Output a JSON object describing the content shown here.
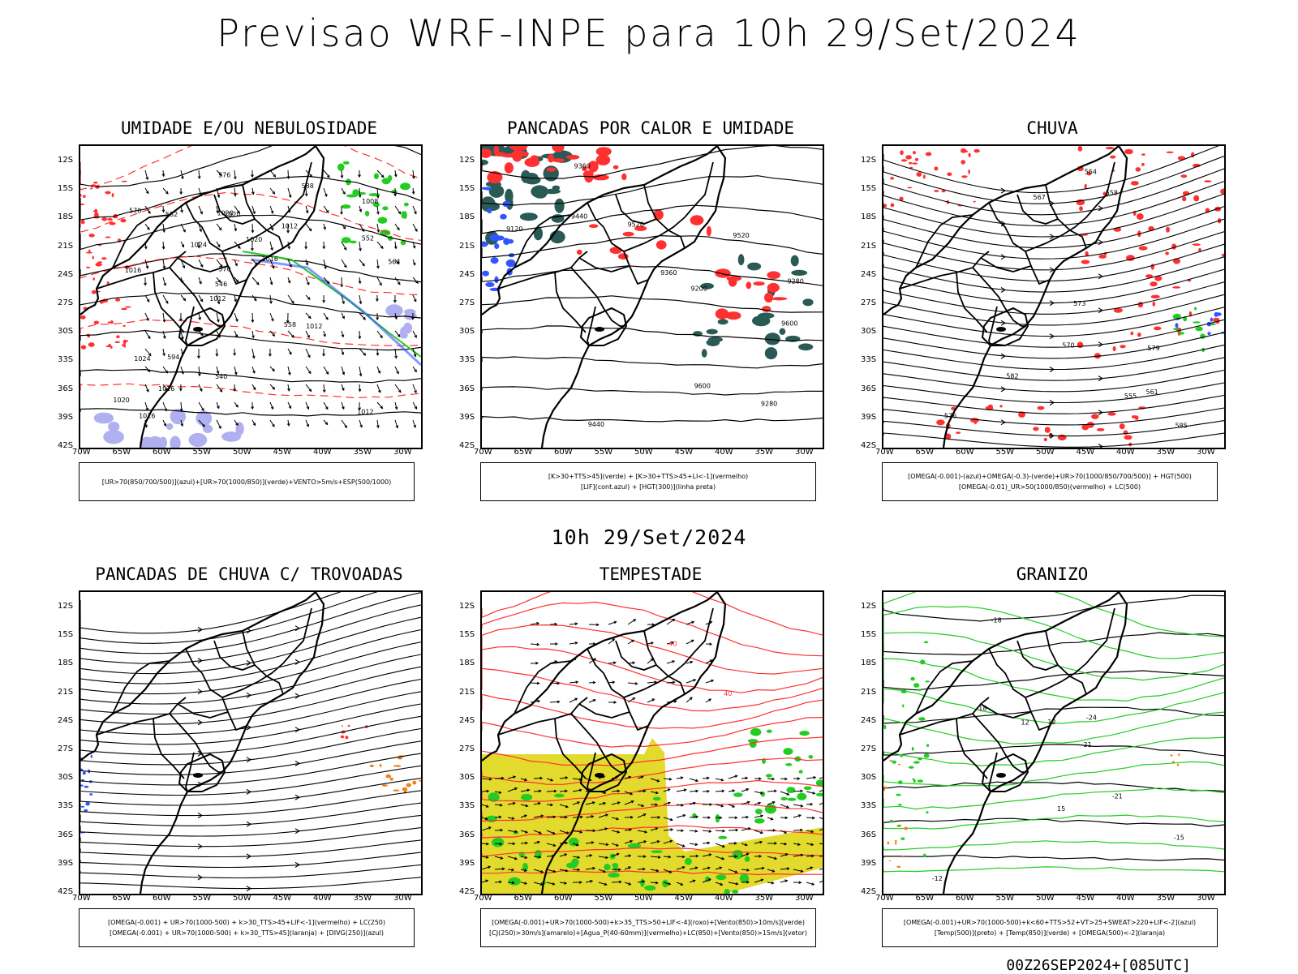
{
  "main_title": "Previsao WRF-INPE  para 10h 29/Set/2024",
  "mid_title": "10h 29/Set/2024",
  "footer": "00Z26SEP2024+[085UTC]",
  "lat_ticks": [
    "12S",
    "15S",
    "18S",
    "21S",
    "24S",
    "27S",
    "30S",
    "33S",
    "36S",
    "39S",
    "42S"
  ],
  "lon_ticks": [
    "70W",
    "65W",
    "60W",
    "55W",
    "50W",
    "45W",
    "40W",
    "35W",
    "30W"
  ],
  "colors": {
    "red": "#ff3030",
    "green": "#22cc22",
    "blue": "#3355ff",
    "darkteal": "#2a5a55",
    "yellow": "#e3da2e",
    "orange": "#f08020",
    "lavender": "#b0b0f0"
  },
  "panels": [
    {
      "title": "UMIDADE E/OU NEBULOSIDADE",
      "legend": [
        "[UR>70(850/700/500)](azul)+[UR>70(1000/850)](verde)+VENTO>5m/s+ESP(500/1000)"
      ],
      "labels": [
        "1012",
        "1016",
        "1008",
        "1012",
        "1012",
        "1016",
        "1020",
        "1020",
        "1024",
        "1024",
        "1020",
        "1016",
        "1020",
        "1016",
        "1012",
        "570",
        "576",
        "564",
        "558",
        "552",
        "546",
        "540",
        "570",
        "582",
        "588",
        "594"
      ]
    },
    {
      "title": "PANCADAS POR CALOR E UMIDADE",
      "legend": [
        "[K>30+TTS>45](verde) + [K>30+TTS>45+LI<-1](vermelho)",
        "[LIF](cont.azul) + [HGT(300)](linha preta)"
      ],
      "labels": [
        "9600",
        "9600",
        "9520",
        "9520",
        "9440",
        "9440",
        "9360",
        "9280",
        "9280",
        "9200",
        "9120",
        "9360"
      ]
    },
    {
      "title": "CHUVA",
      "legend": [
        "[OMEGA(-0.001)-(azul)+OMEGA(-0.3)-(verde)+UR>70(1000/850/700/500)] + HGT(500)",
        "[OMEGA(-0.01)_UR>50(1000/850)(vermelho) + LC(500)"
      ],
      "labels": [
        "576",
        "579",
        "573",
        "570",
        "567",
        "564",
        "561",
        "558",
        "555",
        "582",
        "585"
      ]
    },
    {
      "title": "PANCADAS DE CHUVA C/ TROVOADAS",
      "legend": [
        "[OMEGA(-0.001) + UR>70(1000-500) + k>30_TTS>45+LIF<-1](vermelho) + LC(250)",
        "[OMEGA(-0.001) + UR>70(1000-500) + k>30_TTS>45](laranja) + [DIVG(250)](azul)"
      ],
      "labels": []
    },
    {
      "title": "TEMPESTADE",
      "legend": [
        "[OMEGA(-0.001)+UR>70(1000-500)+k>35_TTS>50+LIF<-4](roxo)+[Vento(850)>10m/s](verde)",
        "[CJ(250)>30m/s](amarelo)+[Agua_P(40-60mm)](vermelho)+LC(850)+[Vento(850)>15m/s](vetor)"
      ],
      "labels": [
        "40",
        "40"
      ]
    },
    {
      "title": "GRANIZO",
      "legend": [
        "[OMEGA(-0.001)+UR>70(1000-500)+k<60+TTS>52+VT>25+SWEAT>220+LIF<-2](azul)",
        "[Temp(500)](preto) + [Temp(850)](verde) + [OMEGA(500)<-2](laranja)"
      ],
      "labels": [
        "-12",
        "-15",
        "-18",
        "-18",
        "-21",
        "-24",
        "-21",
        "12",
        "12",
        "15"
      ]
    }
  ]
}
